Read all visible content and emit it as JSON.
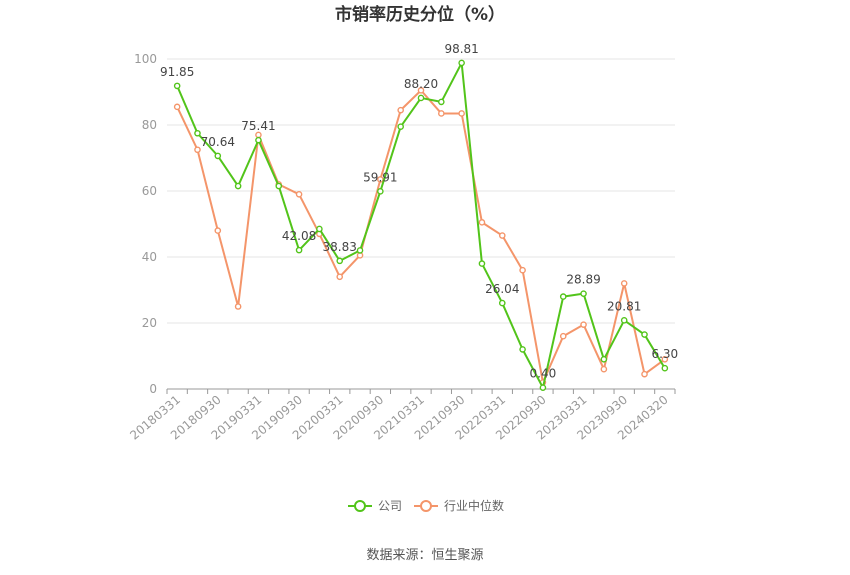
{
  "chart_data": {
    "type": "line",
    "title": "市销率历史分位（%）",
    "xlabel": "",
    "ylabel": "",
    "ylim": [
      0,
      100
    ],
    "y_ticks": [
      "0",
      "20",
      "40",
      "60",
      "80",
      "100"
    ],
    "x": [
      "20180331",
      "20180630",
      "20180930",
      "20181231",
      "20190331",
      "20190630",
      "20190930",
      "20191231",
      "20200331",
      "20200630",
      "20200930",
      "20201231",
      "20210331",
      "20210630",
      "20210930",
      "20211231",
      "20220331",
      "20220630",
      "20220930",
      "20221231",
      "20230331",
      "20230630",
      "20230930",
      "20231231",
      "20240320"
    ],
    "x_tick_labels": [
      "20180331",
      "20180930",
      "20190331",
      "20190930",
      "20200331",
      "20200930",
      "20210331",
      "20210930",
      "20220331",
      "20220930",
      "20230331",
      "20230930",
      "20240320"
    ],
    "x_tick_indices": [
      0,
      2,
      4,
      6,
      8,
      10,
      12,
      14,
      16,
      18,
      20,
      22,
      24
    ],
    "series": [
      {
        "name": "公司",
        "color": "#52c41a",
        "values": [
          91.85,
          77.5,
          70.64,
          61.5,
          75.41,
          61.5,
          42.08,
          48.5,
          38.83,
          42.0,
          59.91,
          79.5,
          88.2,
          87.0,
          98.81,
          38.0,
          26.04,
          12.0,
          0.4,
          28.0,
          28.89,
          9.0,
          20.81,
          16.5,
          6.3
        ]
      },
      {
        "name": "行业中位数",
        "color": "#f4956a",
        "values": [
          85.5,
          72.5,
          48.0,
          25.0,
          77.0,
          62.0,
          59.0,
          47.0,
          34.0,
          40.5,
          63.5,
          84.5,
          90.5,
          83.5,
          83.5,
          50.5,
          46.5,
          36.0,
          2.0,
          16.0,
          19.5,
          6.0,
          32.0,
          4.5,
          9.0
        ]
      }
    ],
    "data_labels": [
      {
        "index": 0,
        "text": "91.85"
      },
      {
        "index": 2,
        "text": "70.64"
      },
      {
        "index": 4,
        "text": "75.41"
      },
      {
        "index": 6,
        "text": "42.08"
      },
      {
        "index": 8,
        "text": "38.83"
      },
      {
        "index": 10,
        "text": "59.91"
      },
      {
        "index": 12,
        "text": "88.20"
      },
      {
        "index": 14,
        "text": "98.81"
      },
      {
        "index": 16,
        "text": "26.04"
      },
      {
        "index": 18,
        "text": "0.40"
      },
      {
        "index": 20,
        "text": "28.89"
      },
      {
        "index": 22,
        "text": "20.81"
      },
      {
        "index": 24,
        "text": "6.30"
      }
    ],
    "grid": true,
    "legend_position": "bottom"
  },
  "source": "数据来源：恒生聚源"
}
